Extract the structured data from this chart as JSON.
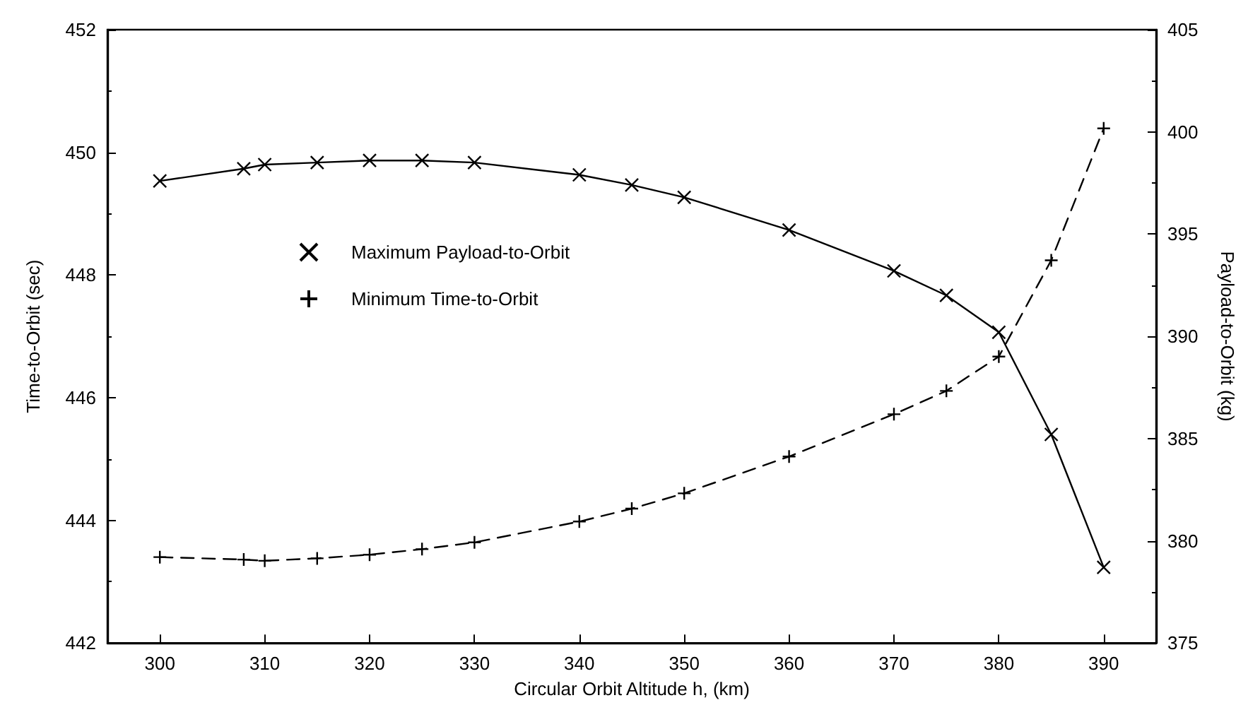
{
  "chart_data": {
    "type": "line",
    "xlabel": "Circular Orbit Altitude h, (km)",
    "ylabel": "Time-to-Orbit (sec)",
    "y2label": "Payload-to-Orbit (kg)",
    "x": [
      300,
      308,
      310,
      315,
      320,
      325,
      330,
      340,
      345,
      350,
      360,
      370,
      375,
      380,
      385,
      390
    ],
    "series": [
      {
        "name": "Maximum Payload-to-Orbit",
        "color": "#000000",
        "axis": "y2",
        "line_style": "solid",
        "marker": "cross",
        "values": [
          397.6,
          398.2,
          398.4,
          398.5,
          398.6,
          398.6,
          398.5,
          397.9,
          397.4,
          396.8,
          395.2,
          393.2,
          392.0,
          390.2,
          385.2,
          378.7
        ]
      },
      {
        "name": "Minimum Time-to-Orbit",
        "color": "#000000",
        "axis": "y",
        "line_style": "dashed",
        "marker": "cross",
        "values": [
          443.4,
          443.36,
          443.34,
          443.38,
          443.44,
          443.53,
          443.64,
          443.98,
          444.19,
          444.44,
          445.04,
          445.73,
          446.11,
          446.67,
          448.24,
          450.39
        ]
      }
    ],
    "xlim": [
      295,
      395
    ],
    "xticks": [
      300,
      310,
      320,
      330,
      340,
      350,
      360,
      370,
      380,
      390
    ],
    "ylim": [
      442,
      452
    ],
    "yticks": [
      442,
      444,
      446,
      448,
      450,
      452
    ],
    "y2lim": [
      375,
      405
    ],
    "y2ticks": [
      375,
      380,
      385,
      390,
      395,
      400,
      405
    ],
    "grid": false,
    "legend": "center left"
  }
}
